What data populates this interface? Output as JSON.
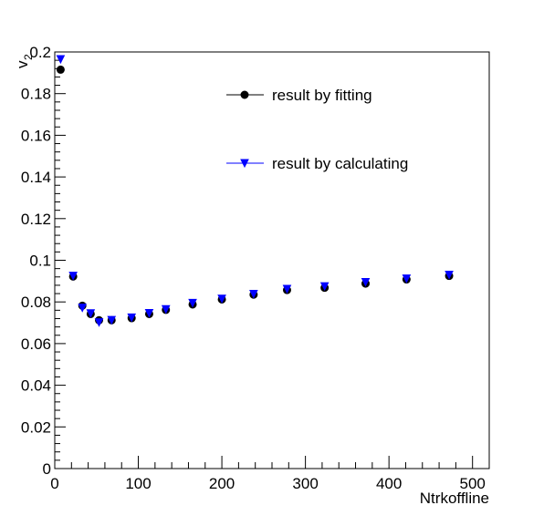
{
  "chart_data": {
    "type": "scatter",
    "xlabel": "Ntrkoffline",
    "ylabel": "v",
    "ylabel_subscript": "2",
    "xlim": [
      0,
      520
    ],
    "ylim": [
      0,
      0.2
    ],
    "x_ticks": [
      0,
      100,
      200,
      300,
      400,
      500
    ],
    "x_tick_labels": [
      "0",
      "100",
      "200",
      "300",
      "400",
      "500"
    ],
    "y_ticks": [
      0,
      0.02,
      0.04,
      0.06,
      0.08,
      0.1,
      0.12,
      0.14,
      0.16,
      0.18,
      0.2
    ],
    "y_tick_labels": [
      "0",
      "0.02",
      "0.04",
      "0.06",
      "0.08",
      "0.1",
      "0.12",
      "0.14",
      "0.16",
      "0.18",
      "0.2"
    ],
    "grid": false,
    "legend_position": "top-right",
    "series": [
      {
        "name": "result by fitting",
        "color": "#000000",
        "marker": "circle",
        "x": [
          7,
          22,
          33,
          43,
          53,
          68,
          92,
          113,
          133,
          165,
          200,
          238,
          278,
          323,
          372,
          421,
          472
        ],
        "y": [
          0.1915,
          0.0922,
          0.0782,
          0.0742,
          0.0712,
          0.0712,
          0.0722,
          0.0742,
          0.0762,
          0.0788,
          0.0812,
          0.0835,
          0.0857,
          0.0868,
          0.0888,
          0.0908,
          0.0925
        ]
      },
      {
        "name": "result by calculating",
        "color": "#0000ff",
        "marker": "triangle-down",
        "x": [
          7,
          22,
          33,
          43,
          53,
          68,
          92,
          113,
          133,
          165,
          200,
          238,
          278,
          323,
          372,
          421,
          472
        ],
        "y": [
          0.1965,
          0.0925,
          0.0772,
          0.0745,
          0.0702,
          0.0713,
          0.0725,
          0.0746,
          0.0765,
          0.0795,
          0.0815,
          0.0838,
          0.0862,
          0.0875,
          0.0895,
          0.0912,
          0.093
        ]
      }
    ]
  }
}
